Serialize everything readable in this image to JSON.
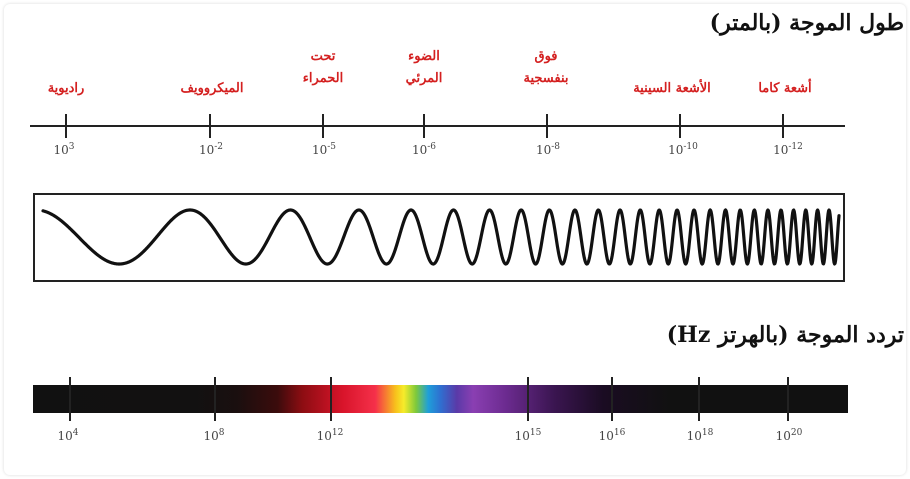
{
  "wavelength": {
    "title": "طول الموجة (بالمتر)",
    "bands": [
      {
        "label": "راديوية"
      },
      {
        "label": "الميكروويف"
      },
      {
        "label": "تحت الحمراء"
      },
      {
        "label": "الضوء المرئي"
      },
      {
        "label": "فوق بنفسجية"
      },
      {
        "label": "الأشعة السينية"
      },
      {
        "label": "أشعة كاما"
      }
    ],
    "ticks": [
      {
        "base": "10",
        "exp": "3"
      },
      {
        "base": "10",
        "exp": "-2"
      },
      {
        "base": "10",
        "exp": "-5"
      },
      {
        "base": "10",
        "exp": "-6"
      },
      {
        "base": "10",
        "exp": "-8"
      },
      {
        "base": "10",
        "exp": "-10"
      },
      {
        "base": "10",
        "exp": "-12"
      }
    ]
  },
  "frequency": {
    "title": "تردد الموجة (بالهرتز Hz)",
    "ticks": [
      {
        "base": "10",
        "exp": "4"
      },
      {
        "base": "10",
        "exp": "8"
      },
      {
        "base": "10",
        "exp": "12"
      },
      {
        "base": "10",
        "exp": "15"
      },
      {
        "base": "10",
        "exp": "16"
      },
      {
        "base": "10",
        "exp": "18"
      },
      {
        "base": "10",
        "exp": "20"
      }
    ]
  },
  "colors": {
    "band_label": "#d42020",
    "axis": "#222222",
    "wave": "#111111"
  }
}
